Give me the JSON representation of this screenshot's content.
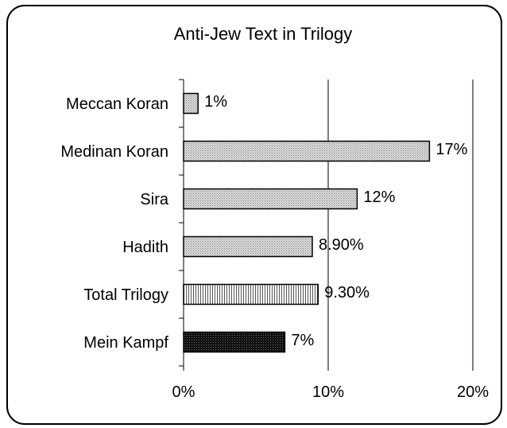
{
  "chart_data": {
    "type": "bar",
    "orientation": "horizontal",
    "title": "Anti-Jew Text in Trilogy",
    "categories": [
      "Meccan Koran",
      "Medinan Koran",
      "Sira",
      "Hadith",
      "Total Trilogy",
      "Mein Kampf"
    ],
    "values": [
      1,
      17,
      12,
      8.9,
      9.3,
      7
    ],
    "data_labels": [
      "1%",
      "17%",
      "12%",
      "8.90%",
      "9.30%",
      "7%"
    ],
    "fills": [
      "dots-light",
      "dots-light",
      "dots-light",
      "dots-light",
      "vertical-lines",
      "dots-dark"
    ],
    "xlim": [
      0,
      20
    ],
    "x_ticks": [
      "0%",
      "10%",
      "20%"
    ],
    "xlabel": "",
    "ylabel": "",
    "grid": "vertical",
    "legend": "none"
  },
  "colors": {
    "border": "#000000",
    "bar_light": "#cfcfcf",
    "bar_dark": "#111111",
    "gridline": "#000000",
    "background": "#ffffff"
  }
}
